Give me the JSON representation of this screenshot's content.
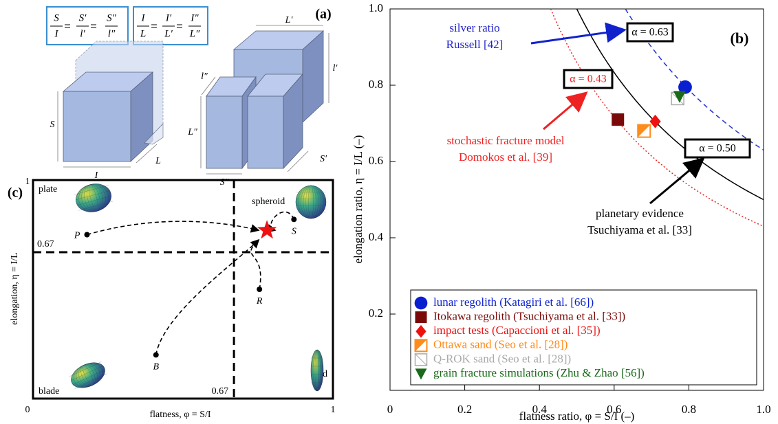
{
  "panel_a": {
    "label": "(a)",
    "formula_1": [
      "S",
      "I",
      "S′",
      "l′",
      "S″",
      "l″"
    ],
    "formula_2": [
      "I",
      "L",
      "I′",
      "L′",
      "I″",
      "L″"
    ],
    "dimension_labels": [
      "S",
      "I",
      "L",
      "L′",
      "l′",
      "S′",
      "l″",
      "L″",
      "S″"
    ]
  },
  "chart_data": [
    {
      "type": "scatter",
      "panel_label": "(b)",
      "xlabel": "flatness ratio, φ = S/I (–)",
      "ylabel": "elongation ratio, η = I/L (–)",
      "xlim": [
        0,
        1
      ],
      "ylim": [
        0,
        1
      ],
      "xticks": [
        0,
        0.2,
        0.4,
        0.6,
        0.8,
        {
          "value": 1,
          "label": "1.0"
        }
      ],
      "yticks": [
        0.2,
        0.4,
        0.6,
        0.8,
        {
          "value": 1,
          "label": "1.0"
        }
      ],
      "curves": [
        {
          "label": "α = 0.63",
          "alpha": 0.63,
          "color": "#2233cc",
          "label_color": "#000000",
          "style": "dashed"
        },
        {
          "label": "α = 0.43",
          "alpha": 0.43,
          "color": "#ee2222",
          "label_color": "#ee2222",
          "style": "dotted"
        },
        {
          "label": "α = 0.50",
          "alpha": 0.5,
          "color": "#000000",
          "label_color": "#000000",
          "style": "solid"
        }
      ],
      "annotations": [
        {
          "lines": [
            "silver ratio",
            "Russell [42]"
          ],
          "color": "#2222cc"
        },
        {
          "lines": [
            "stochastic fracture model",
            "Domokos et al. [39]"
          ],
          "color": "#ee2222"
        },
        {
          "lines": [
            "planetary evidence",
            "Tsuchiyama et al. [33]"
          ],
          "color": "#000000"
        }
      ],
      "series": [
        {
          "name": "lunar regolith (Katagiri et al. [66])",
          "color": "#0a1fd0",
          "marker": "circle",
          "x": [
            0.79
          ],
          "values": [
            0.795
          ]
        },
        {
          "name": "Itokawa regolith (Tsuchiyama et al. [33])",
          "color": "#7a0a0a",
          "marker": "square",
          "x": [
            0.61
          ],
          "values": [
            0.71
          ]
        },
        {
          "name": "impact tests (Capaccioni et al. [35])",
          "color": "#ee1111",
          "marker": "diamond",
          "x": [
            0.71
          ],
          "values": [
            0.705
          ]
        },
        {
          "name": "Ottawa sand (Seo et al. [28])",
          "color": "#ff8c1a",
          "marker": "half-square",
          "x": [
            0.68
          ],
          "values": [
            0.68
          ]
        },
        {
          "name": "Q-ROK sand (Seo et al. [28])",
          "color": "#aaaaaa",
          "marker": "crossed-square",
          "x": [
            0.77
          ],
          "values": [
            0.765
          ]
        },
        {
          "name": "grain fracture simulations (Zhu & Zhao [56])",
          "color": "#1a6a1a",
          "marker": "triangle-down",
          "x": [
            0.775
          ],
          "values": [
            0.77
          ]
        }
      ],
      "legend": "lower right"
    },
    {
      "type": "shape-map",
      "panel_label": "(c)",
      "xlabel": "flatness, φ = S/I",
      "ylabel": "elongation, η = I/L",
      "xlim": [
        0,
        1
      ],
      "ylim": [
        0,
        1
      ],
      "xticks": [
        0,
        1
      ],
      "yticks": [
        1
      ],
      "thresholds": {
        "x": 0.67,
        "y": 0.67
      },
      "regions": [
        "plate",
        "spheroid",
        "blade",
        "rod"
      ],
      "points": {
        "labels": [
          "P",
          "S",
          "R",
          "B"
        ],
        "x": [
          0.18,
          0.87,
          0.755,
          0.41
        ],
        "values": [
          0.75,
          0.82,
          0.5,
          0.2
        ]
      },
      "target": {
        "x": 0.78,
        "y": 0.77,
        "color": "#ee1111"
      }
    }
  ]
}
